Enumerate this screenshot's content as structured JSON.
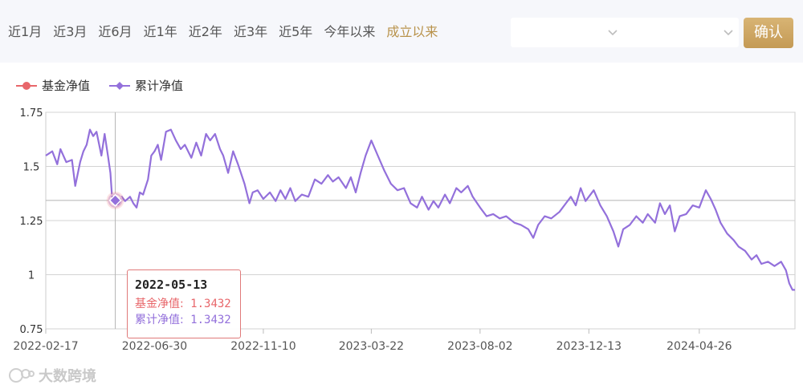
{
  "toolbar": {
    "ranges": [
      "近1月",
      "近3月",
      "近6月",
      "近1年",
      "近2年",
      "近3年",
      "近5年",
      "今年以来",
      "成立以来"
    ],
    "active_range": "成立以来",
    "confirm_label": "确认"
  },
  "legend": {
    "items": [
      {
        "label": "基金净值",
        "color": "#e8666a"
      },
      {
        "label": "累计净值",
        "color": "#9370db"
      }
    ]
  },
  "tooltip": {
    "date": "2022-05-13",
    "rows": [
      {
        "label": "基金净值:",
        "value": "1.3432",
        "color": "#e8666a"
      },
      {
        "label": "累计净值:",
        "value": "1.3432",
        "color": "#9370db"
      }
    ]
  },
  "watermark": {
    "text": "大数跨境"
  },
  "chart_data": {
    "type": "line",
    "x_tick_labels": [
      "2022-02-17",
      "2022-06-30",
      "2022-11-10",
      "2023-03-22",
      "2023-08-02",
      "2023-12-13",
      "2024-04-26"
    ],
    "y_tick_labels": [
      "0.75",
      "1",
      "1.25",
      "1.5",
      "1.75"
    ],
    "ylim": [
      0.75,
      1.75
    ],
    "xlim": [
      "2022-02-17",
      "2024-08-21"
    ],
    "grid": true,
    "legend_position": "top-left",
    "highlighted": {
      "x": "2022-05-13",
      "y": 1.3432
    },
    "series": [
      {
        "name": "基金净值",
        "color": "#e8666a",
        "points": [
          [
            "2022-02-17",
            1.55
          ],
          [
            "2022-05-13",
            1.3432
          ],
          [
            "2024-08-21",
            0.93
          ]
        ]
      },
      {
        "name": "累计净值",
        "color": "#9370db",
        "points": [
          [
            "2022-02-17",
            1.55
          ],
          [
            "2022-02-21",
            1.56
          ],
          [
            "2022-02-25",
            1.57
          ],
          [
            "2022-03-03",
            1.51
          ],
          [
            "2022-03-07",
            1.58
          ],
          [
            "2022-03-14",
            1.52
          ],
          [
            "2022-03-21",
            1.53
          ],
          [
            "2022-03-25",
            1.41
          ],
          [
            "2022-03-31",
            1.52
          ],
          [
            "2022-04-04",
            1.57
          ],
          [
            "2022-04-08",
            1.6
          ],
          [
            "2022-04-12",
            1.67
          ],
          [
            "2022-04-16",
            1.64
          ],
          [
            "2022-04-20",
            1.66
          ],
          [
            "2022-04-26",
            1.55
          ],
          [
            "2022-04-30",
            1.65
          ],
          [
            "2022-05-04",
            1.55
          ],
          [
            "2022-05-07",
            1.47
          ],
          [
            "2022-05-09",
            1.36
          ],
          [
            "2022-05-13",
            1.3432
          ],
          [
            "2022-05-17",
            1.32
          ],
          [
            "2022-05-21",
            1.36
          ],
          [
            "2022-05-25",
            1.34
          ],
          [
            "2022-05-31",
            1.36
          ],
          [
            "2022-06-04",
            1.33
          ],
          [
            "2022-06-08",
            1.31
          ],
          [
            "2022-06-12",
            1.38
          ],
          [
            "2022-06-16",
            1.37
          ],
          [
            "2022-06-22",
            1.44
          ],
          [
            "2022-06-26",
            1.55
          ],
          [
            "2022-06-30",
            1.57
          ],
          [
            "2022-07-04",
            1.6
          ],
          [
            "2022-07-08",
            1.53
          ],
          [
            "2022-07-14",
            1.66
          ],
          [
            "2022-07-20",
            1.67
          ],
          [
            "2022-07-26",
            1.62
          ],
          [
            "2022-08-01",
            1.58
          ],
          [
            "2022-08-06",
            1.6
          ],
          [
            "2022-08-14",
            1.54
          ],
          [
            "2022-08-20",
            1.61
          ],
          [
            "2022-08-26",
            1.55
          ],
          [
            "2022-09-01",
            1.65
          ],
          [
            "2022-09-06",
            1.62
          ],
          [
            "2022-09-12",
            1.65
          ],
          [
            "2022-09-18",
            1.58
          ],
          [
            "2022-09-22",
            1.55
          ],
          [
            "2022-09-28",
            1.47
          ],
          [
            "2022-10-04",
            1.57
          ],
          [
            "2022-10-10",
            1.51
          ],
          [
            "2022-10-18",
            1.42
          ],
          [
            "2022-10-24",
            1.33
          ],
          [
            "2022-10-28",
            1.38
          ],
          [
            "2022-11-03",
            1.39
          ],
          [
            "2022-11-10",
            1.35
          ],
          [
            "2022-11-18",
            1.38
          ],
          [
            "2022-11-25",
            1.34
          ],
          [
            "2022-12-01",
            1.39
          ],
          [
            "2022-12-07",
            1.35
          ],
          [
            "2022-12-13",
            1.4
          ],
          [
            "2022-12-19",
            1.34
          ],
          [
            "2022-12-27",
            1.37
          ],
          [
            "2023-01-04",
            1.36
          ],
          [
            "2023-01-12",
            1.44
          ],
          [
            "2023-01-20",
            1.42
          ],
          [
            "2023-01-28",
            1.46
          ],
          [
            "2023-02-03",
            1.43
          ],
          [
            "2023-02-10",
            1.45
          ],
          [
            "2023-02-19",
            1.4
          ],
          [
            "2023-02-25",
            1.45
          ],
          [
            "2023-03-03",
            1.38
          ],
          [
            "2023-03-09",
            1.47
          ],
          [
            "2023-03-15",
            1.55
          ],
          [
            "2023-03-22",
            1.62
          ],
          [
            "2023-03-30",
            1.55
          ],
          [
            "2023-04-07",
            1.48
          ],
          [
            "2023-04-15",
            1.42
          ],
          [
            "2023-04-23",
            1.39
          ],
          [
            "2023-05-01",
            1.4
          ],
          [
            "2023-05-09",
            1.33
          ],
          [
            "2023-05-17",
            1.31
          ],
          [
            "2023-05-23",
            1.36
          ],
          [
            "2023-05-31",
            1.3
          ],
          [
            "2023-06-06",
            1.34
          ],
          [
            "2023-06-12",
            1.31
          ],
          [
            "2023-06-20",
            1.37
          ],
          [
            "2023-06-26",
            1.33
          ],
          [
            "2023-07-04",
            1.4
          ],
          [
            "2023-07-10",
            1.38
          ],
          [
            "2023-07-18",
            1.41
          ],
          [
            "2023-07-24",
            1.36
          ],
          [
            "2023-08-02",
            1.31
          ],
          [
            "2023-08-10",
            1.27
          ],
          [
            "2023-08-18",
            1.28
          ],
          [
            "2023-08-26",
            1.26
          ],
          [
            "2023-09-03",
            1.27
          ],
          [
            "2023-09-13",
            1.24
          ],
          [
            "2023-09-21",
            1.23
          ],
          [
            "2023-09-30",
            1.21
          ],
          [
            "2023-10-06",
            1.17
          ],
          [
            "2023-10-12",
            1.23
          ],
          [
            "2023-10-20",
            1.27
          ],
          [
            "2023-10-28",
            1.26
          ],
          [
            "2023-11-07",
            1.29
          ],
          [
            "2023-11-15",
            1.33
          ],
          [
            "2023-11-21",
            1.36
          ],
          [
            "2023-11-27",
            1.32
          ],
          [
            "2023-12-03",
            1.4
          ],
          [
            "2023-12-09",
            1.34
          ],
          [
            "2023-12-19",
            1.39
          ],
          [
            "2023-12-27",
            1.32
          ],
          [
            "2024-01-04",
            1.27
          ],
          [
            "2024-01-12",
            1.2
          ],
          [
            "2024-01-18",
            1.13
          ],
          [
            "2024-01-24",
            1.21
          ],
          [
            "2024-02-01",
            1.23
          ],
          [
            "2024-02-09",
            1.27
          ],
          [
            "2024-02-17",
            1.24
          ],
          [
            "2024-02-23",
            1.28
          ],
          [
            "2024-03-03",
            1.24
          ],
          [
            "2024-03-09",
            1.33
          ],
          [
            "2024-03-15",
            1.28
          ],
          [
            "2024-03-21",
            1.32
          ],
          [
            "2024-03-27",
            1.2
          ],
          [
            "2024-04-02",
            1.27
          ],
          [
            "2024-04-10",
            1.28
          ],
          [
            "2024-04-18",
            1.32
          ],
          [
            "2024-04-26",
            1.31
          ],
          [
            "2024-05-04",
            1.39
          ],
          [
            "2024-05-10",
            1.35
          ],
          [
            "2024-05-16",
            1.3
          ],
          [
            "2024-05-22",
            1.24
          ],
          [
            "2024-05-30",
            1.19
          ],
          [
            "2024-06-07",
            1.16
          ],
          [
            "2024-06-13",
            1.13
          ],
          [
            "2024-06-21",
            1.11
          ],
          [
            "2024-06-29",
            1.07
          ],
          [
            "2024-07-05",
            1.09
          ],
          [
            "2024-07-11",
            1.05
          ],
          [
            "2024-07-19",
            1.06
          ],
          [
            "2024-07-27",
            1.04
          ],
          [
            "2024-08-04",
            1.06
          ],
          [
            "2024-08-10",
            1.02
          ],
          [
            "2024-08-14",
            0.96
          ],
          [
            "2024-08-18",
            0.93
          ],
          [
            "2024-08-21",
            0.93
          ]
        ]
      }
    ]
  }
}
